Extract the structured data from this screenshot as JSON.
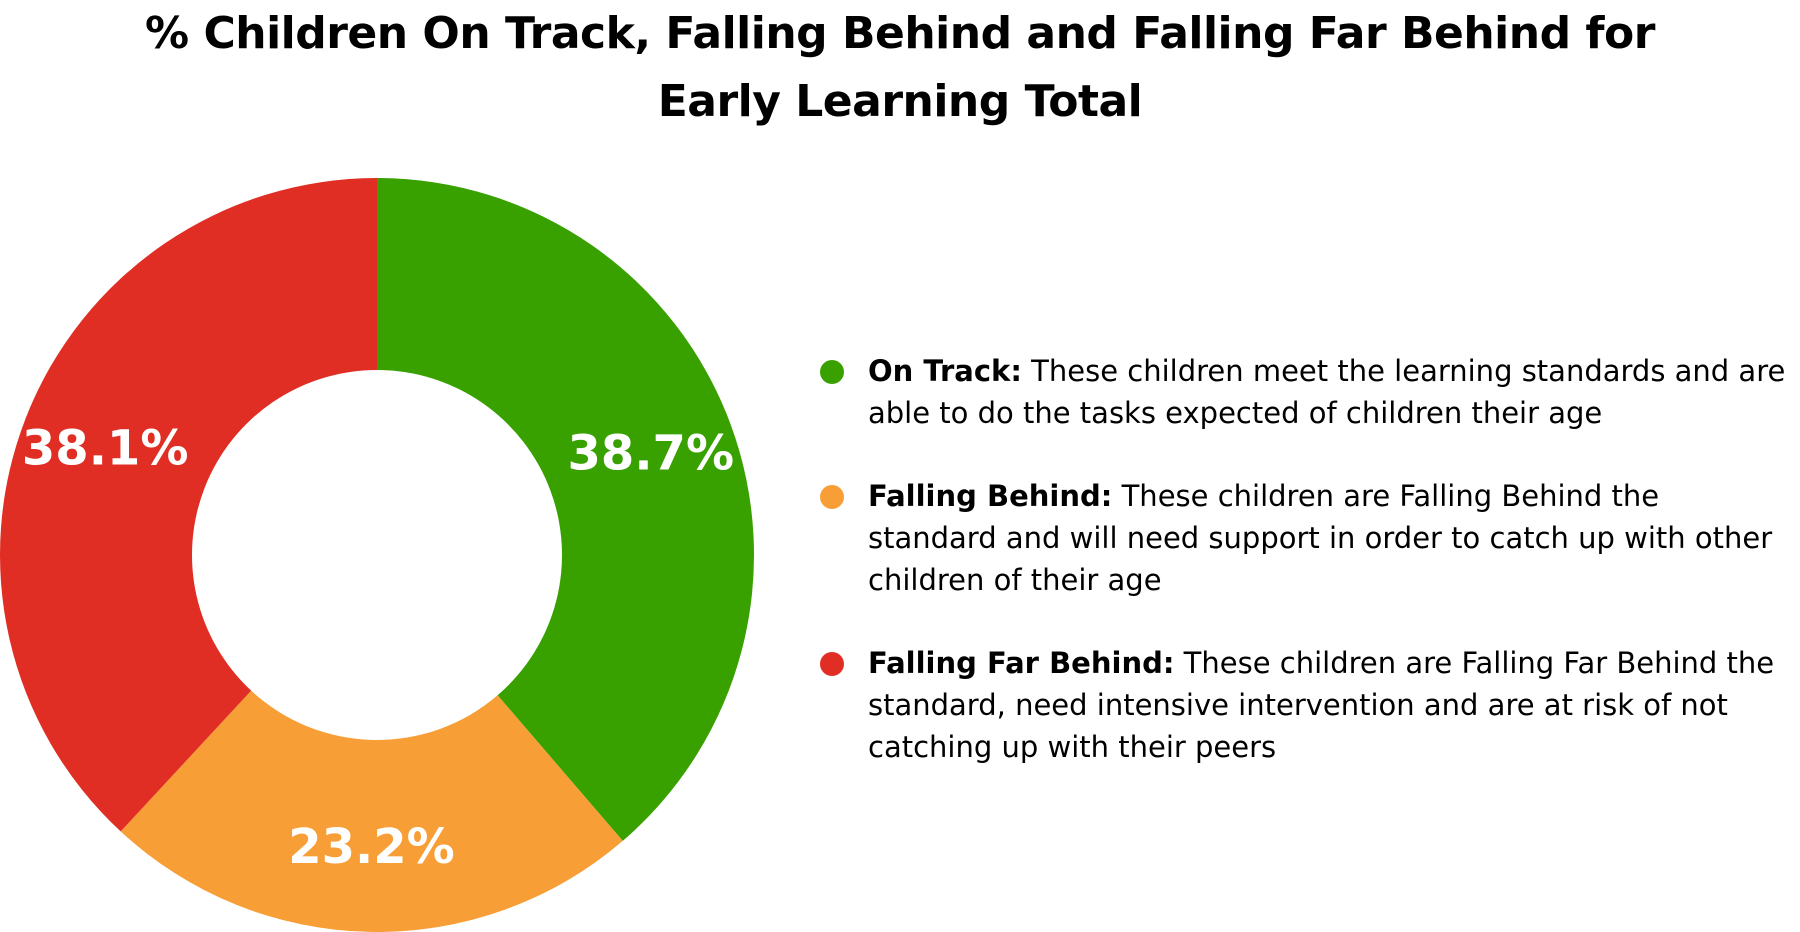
{
  "chart_data": {
    "type": "pie",
    "donut": true,
    "title_lines": [
      "% Children On Track, Falling Behind and Falling Far Behind for",
      "Early Learning Total"
    ],
    "slices": [
      {
        "name": "On Track",
        "value": 38.7,
        "label": "38.7%",
        "color": "#38a100"
      },
      {
        "name": "Falling Behind",
        "value": 23.2,
        "label": "23.2%",
        "color": "#f89e37"
      },
      {
        "name": "Falling Far Behind",
        "value": 38.1,
        "label": "38.1%",
        "color": "#e02e24"
      }
    ],
    "legend_placement": "right",
    "legend": [
      {
        "name": "On Track:",
        "description": "These children meet the learning standards and are able to do the tasks expected of children their age",
        "color": "#38a100"
      },
      {
        "name": "Falling Behind:",
        "description": "These children are Falling Behind the standard and will need support in order to catch up with other children of their age",
        "color": "#f89e37"
      },
      {
        "name": "Falling Far Behind:",
        "description": "These children are Falling Far Behind the standard, need intensive intervention and are at risk of not catching up with their peers",
        "color": "#e02e24"
      }
    ]
  }
}
